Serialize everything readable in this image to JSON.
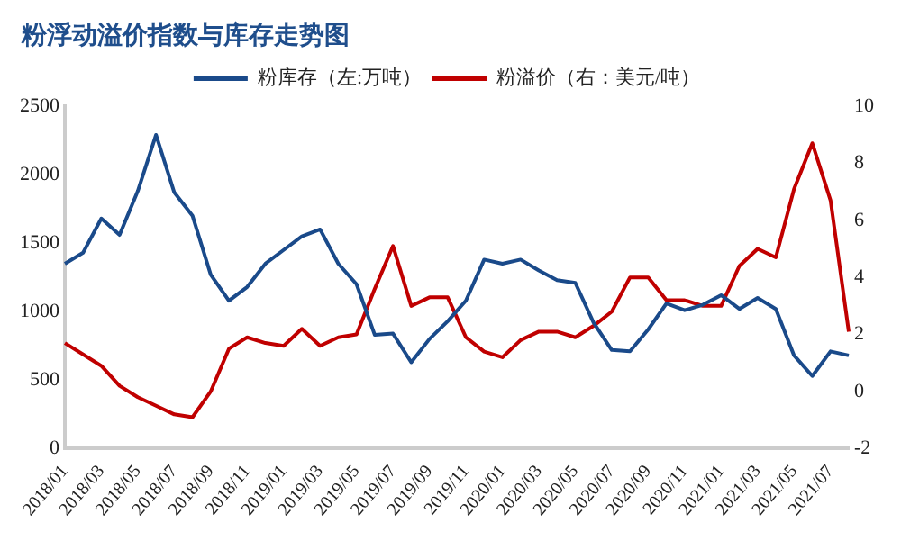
{
  "chart_data": {
    "type": "line",
    "title": "粉浮动溢价指数与库存走势图",
    "categories": [
      "2018/01",
      null,
      "2018/03",
      null,
      "2018/05",
      null,
      "2018/07",
      null,
      "2018/09",
      null,
      "2018/11",
      null,
      "2019/01",
      null,
      "2019/03",
      null,
      "2019/05",
      null,
      "2019/07",
      null,
      "2019/09",
      null,
      "2019/11",
      null,
      "2020/01",
      null,
      "2020/03",
      null,
      "2020/05",
      null,
      "2020/07",
      null,
      "2020/09",
      null,
      "2020/11",
      null,
      "2021/01",
      null,
      "2021/03",
      null,
      "2021/05",
      null,
      "2021/07",
      null
    ],
    "series": [
      {
        "name": "粉库存（左:万吨）",
        "color": "#1a4a8a",
        "values": [
          1350,
          1430,
          1680,
          1560,
          1880,
          2290,
          1870,
          1700,
          1270,
          1080,
          1180,
          1350,
          1450,
          1550,
          1600,
          1350,
          1200,
          830,
          840,
          630,
          800,
          930,
          1080,
          1380,
          1350,
          1380,
          1300,
          1230,
          1210,
          920,
          720,
          710,
          870,
          1060,
          1010,
          1050,
          1120,
          1020,
          1100,
          1020,
          680,
          530,
          710,
          680
        ]
      },
      {
        "name": "粉溢价（右：美元/吨）",
        "color": "#c00000",
        "axis": "y2",
        "values": [
          1.7,
          1.3,
          0.9,
          0.2,
          -0.2,
          -0.5,
          -0.8,
          -0.9,
          0.0,
          1.5,
          1.9,
          1.7,
          1.6,
          2.2,
          1.6,
          1.9,
          2.0,
          3.6,
          5.1,
          3.0,
          3.3,
          3.3,
          1.9,
          1.4,
          1.2,
          1.8,
          2.1,
          2.1,
          1.9,
          2.3,
          2.8,
          4.0,
          4.0,
          3.2,
          3.2,
          3.0,
          3.0,
          4.4,
          5.0,
          4.7,
          7.1,
          8.7,
          6.7,
          2.1
        ]
      }
    ],
    "ylim": [
      0,
      2500
    ],
    "yticks": [
      0,
      500,
      1000,
      1500,
      2000,
      2500
    ],
    "y2lim": [
      -2,
      10
    ],
    "y2ticks": [
      -2,
      0,
      2,
      4,
      6,
      8,
      10
    ],
    "legend": "top",
    "grid": false,
    "marker": "none",
    "line_style": "solid"
  }
}
